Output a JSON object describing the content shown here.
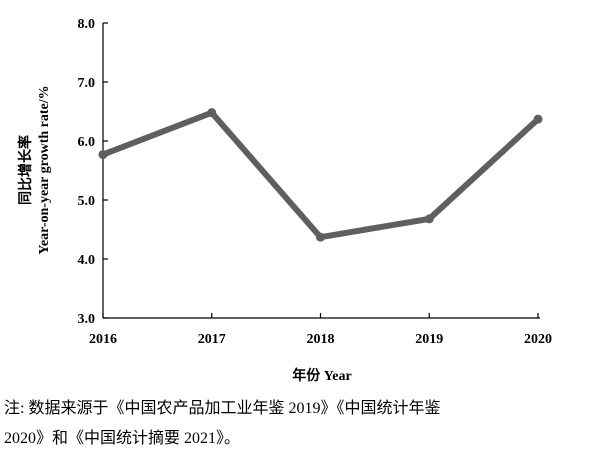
{
  "chart_data": {
    "type": "line",
    "x": [
      "2016",
      "2017",
      "2018",
      "2019",
      "2020"
    ],
    "series": [
      {
        "values": [
          5.77,
          6.48,
          4.37,
          4.68,
          6.37
        ]
      }
    ],
    "xlabel": "年份 Year",
    "ylabel_line1": "同比增长率",
    "ylabel_line2": "Year-on-year growth rate/%",
    "yticks": [
      "3.0",
      "4.0",
      "5.0",
      "6.0",
      "7.0",
      "8.0"
    ],
    "ylim": [
      3.0,
      8.0
    ],
    "grid": false,
    "line_color": "#5f5f5f"
  },
  "note": {
    "line1": "注: 数据来源于《中国农产品加工业年鉴 2019》《中国统计年鉴",
    "line2": "2020》和《中国统计摘要 2021》。"
  }
}
